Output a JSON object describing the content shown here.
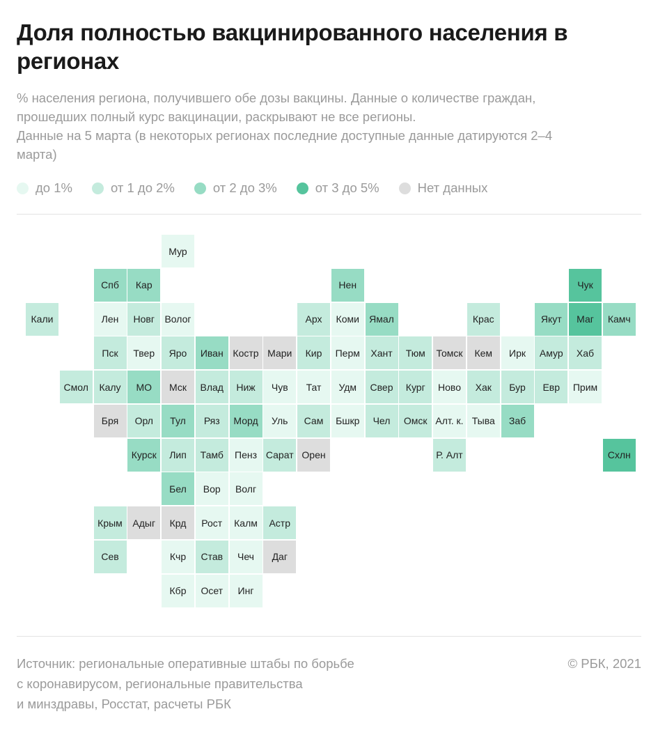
{
  "title": "Доля полностью вакцинированного населения в регионах",
  "subtitle_lines": [
    "% населения региона, получившего обе дозы вакцины. Данные о количестве граждан,",
    "прошедших полный курс вакцинации, раскрывают не все регионы.",
    "Данные на 5 марта (в некоторых регионах последние доступные данные датируются 2–4",
    "марта)"
  ],
  "legend": [
    {
      "label": "до 1%",
      "color": "#e6f8f1"
    },
    {
      "label": "от 1 до 2%",
      "color": "#c4ebdd"
    },
    {
      "label": "от 2 до 3%",
      "color": "#97dcc4"
    },
    {
      "label": "от 3 до 5%",
      "color": "#56c49d"
    },
    {
      "label": "Нет данных",
      "color": "#dddddd"
    }
  ],
  "source_lines": [
    "Источник:  региональные оперативные штабы по борьбе",
    "с коронавирусом, региональные правительства",
    "и минздравы, Росстат, расчеты РБК"
  ],
  "copyright": "©  РБК, 2021",
  "regions": [
    {
      "label": "Мур",
      "col": 5,
      "row": 0,
      "cat": 0
    },
    {
      "label": "Спб",
      "col": 3,
      "row": 1,
      "cat": 2
    },
    {
      "label": "Кар",
      "col": 4,
      "row": 1,
      "cat": 2
    },
    {
      "label": "Нен",
      "col": 10,
      "row": 1,
      "cat": 2
    },
    {
      "label": "Чук",
      "col": 17,
      "row": 1,
      "cat": 3
    },
    {
      "label": "Кали",
      "col": 1,
      "row": 2,
      "cat": 1
    },
    {
      "label": "Лен",
      "col": 3,
      "row": 2,
      "cat": 0
    },
    {
      "label": "Новг",
      "col": 4,
      "row": 2,
      "cat": 1
    },
    {
      "label": "Волог",
      "col": 5,
      "row": 2,
      "cat": 0
    },
    {
      "label": "Арх",
      "col": 9,
      "row": 2,
      "cat": 1
    },
    {
      "label": "Коми",
      "col": 10,
      "row": 2,
      "cat": 0
    },
    {
      "label": "Ямал",
      "col": 11,
      "row": 2,
      "cat": 2
    },
    {
      "label": "Крас",
      "col": 14,
      "row": 2,
      "cat": 1
    },
    {
      "label": "Якут",
      "col": 16,
      "row": 2,
      "cat": 2
    },
    {
      "label": "Маг",
      "col": 17,
      "row": 2,
      "cat": 3
    },
    {
      "label": "Камч",
      "col": 18,
      "row": 2,
      "cat": 2
    },
    {
      "label": "Пск",
      "col": 3,
      "row": 3,
      "cat": 1
    },
    {
      "label": "Твер",
      "col": 4,
      "row": 3,
      "cat": 0
    },
    {
      "label": "Яро",
      "col": 5,
      "row": 3,
      "cat": 1
    },
    {
      "label": "Иван",
      "col": 6,
      "row": 3,
      "cat": 2
    },
    {
      "label": "Костр",
      "col": 7,
      "row": 3,
      "cat": "n"
    },
    {
      "label": "Мари",
      "col": 8,
      "row": 3,
      "cat": "n"
    },
    {
      "label": "Кир",
      "col": 9,
      "row": 3,
      "cat": 1
    },
    {
      "label": "Перм",
      "col": 10,
      "row": 3,
      "cat": 0
    },
    {
      "label": "Хант",
      "col": 11,
      "row": 3,
      "cat": 1
    },
    {
      "label": "Тюм",
      "col": 12,
      "row": 3,
      "cat": 1
    },
    {
      "label": "Томск",
      "col": 13,
      "row": 3,
      "cat": "n"
    },
    {
      "label": "Кем",
      "col": 14,
      "row": 3,
      "cat": "n"
    },
    {
      "label": "Ирк",
      "col": 15,
      "row": 3,
      "cat": 0
    },
    {
      "label": "Амур",
      "col": 16,
      "row": 3,
      "cat": 1
    },
    {
      "label": "Хаб",
      "col": 17,
      "row": 3,
      "cat": 1
    },
    {
      "label": "Смол",
      "col": 2,
      "row": 4,
      "cat": 1
    },
    {
      "label": "Калу",
      "col": 3,
      "row": 4,
      "cat": 1
    },
    {
      "label": "МО",
      "col": 4,
      "row": 4,
      "cat": 2
    },
    {
      "label": "Мск",
      "col": 5,
      "row": 4,
      "cat": "n"
    },
    {
      "label": "Влад",
      "col": 6,
      "row": 4,
      "cat": 1
    },
    {
      "label": "Ниж",
      "col": 7,
      "row": 4,
      "cat": 1
    },
    {
      "label": "Чув",
      "col": 8,
      "row": 4,
      "cat": 0
    },
    {
      "label": "Тат",
      "col": 9,
      "row": 4,
      "cat": 0
    },
    {
      "label": "Удм",
      "col": 10,
      "row": 4,
      "cat": 0
    },
    {
      "label": "Свер",
      "col": 11,
      "row": 4,
      "cat": 1
    },
    {
      "label": "Кург",
      "col": 12,
      "row": 4,
      "cat": 1
    },
    {
      "label": "Ново",
      "col": 13,
      "row": 4,
      "cat": 0
    },
    {
      "label": "Хак",
      "col": 14,
      "row": 4,
      "cat": 1
    },
    {
      "label": "Бур",
      "col": 15,
      "row": 4,
      "cat": 1
    },
    {
      "label": "Евр",
      "col": 16,
      "row": 4,
      "cat": 1
    },
    {
      "label": "Прим",
      "col": 17,
      "row": 4,
      "cat": 0
    },
    {
      "label": "Бря",
      "col": 3,
      "row": 5,
      "cat": "n"
    },
    {
      "label": "Орл",
      "col": 4,
      "row": 5,
      "cat": 1
    },
    {
      "label": "Тул",
      "col": 5,
      "row": 5,
      "cat": 2
    },
    {
      "label": "Ряз",
      "col": 6,
      "row": 5,
      "cat": 1
    },
    {
      "label": "Морд",
      "col": 7,
      "row": 5,
      "cat": 2
    },
    {
      "label": "Уль",
      "col": 8,
      "row": 5,
      "cat": 0
    },
    {
      "label": "Сам",
      "col": 9,
      "row": 5,
      "cat": 1
    },
    {
      "label": "Бшкр",
      "col": 10,
      "row": 5,
      "cat": 0
    },
    {
      "label": "Чел",
      "col": 11,
      "row": 5,
      "cat": 1
    },
    {
      "label": "Омск",
      "col": 12,
      "row": 5,
      "cat": 1
    },
    {
      "label": "Алт. к.",
      "col": 13,
      "row": 5,
      "cat": 0
    },
    {
      "label": "Тыва",
      "col": 14,
      "row": 5,
      "cat": 0
    },
    {
      "label": "Заб",
      "col": 15,
      "row": 5,
      "cat": 2
    },
    {
      "label": "Курск",
      "col": 4,
      "row": 6,
      "cat": 2
    },
    {
      "label": "Лип",
      "col": 5,
      "row": 6,
      "cat": 1
    },
    {
      "label": "Тамб",
      "col": 6,
      "row": 6,
      "cat": 1
    },
    {
      "label": "Пенз",
      "col": 7,
      "row": 6,
      "cat": 0
    },
    {
      "label": "Сарат",
      "col": 8,
      "row": 6,
      "cat": 1
    },
    {
      "label": "Орен",
      "col": 9,
      "row": 6,
      "cat": "n"
    },
    {
      "label": "Р. Алт",
      "col": 13,
      "row": 6,
      "cat": 1
    },
    {
      "label": "Схлн",
      "col": 18,
      "row": 6,
      "cat": 3
    },
    {
      "label": "Бел",
      "col": 5,
      "row": 7,
      "cat": 2
    },
    {
      "label": "Вор",
      "col": 6,
      "row": 7,
      "cat": 0
    },
    {
      "label": "Волг",
      "col": 7,
      "row": 7,
      "cat": 0
    },
    {
      "label": "Крым",
      "col": 3,
      "row": 8,
      "cat": 1
    },
    {
      "label": "Адыг",
      "col": 4,
      "row": 8,
      "cat": "n"
    },
    {
      "label": "Крд",
      "col": 5,
      "row": 8,
      "cat": "n"
    },
    {
      "label": "Рост",
      "col": 6,
      "row": 8,
      "cat": 0
    },
    {
      "label": "Калм",
      "col": 7,
      "row": 8,
      "cat": 0
    },
    {
      "label": "Астр",
      "col": 8,
      "row": 8,
      "cat": 1
    },
    {
      "label": "Сев",
      "col": 3,
      "row": 9,
      "cat": 1
    },
    {
      "label": "Кчр",
      "col": 5,
      "row": 9,
      "cat": 0
    },
    {
      "label": "Став",
      "col": 6,
      "row": 9,
      "cat": 1
    },
    {
      "label": "Чеч",
      "col": 7,
      "row": 9,
      "cat": 0
    },
    {
      "label": "Даг",
      "col": 8,
      "row": 9,
      "cat": "n"
    },
    {
      "label": "Кбр",
      "col": 5,
      "row": 10,
      "cat": 0
    },
    {
      "label": "Осет",
      "col": 6,
      "row": 10,
      "cat": 0
    },
    {
      "label": "Инг",
      "col": 7,
      "row": 10,
      "cat": 0
    }
  ]
}
